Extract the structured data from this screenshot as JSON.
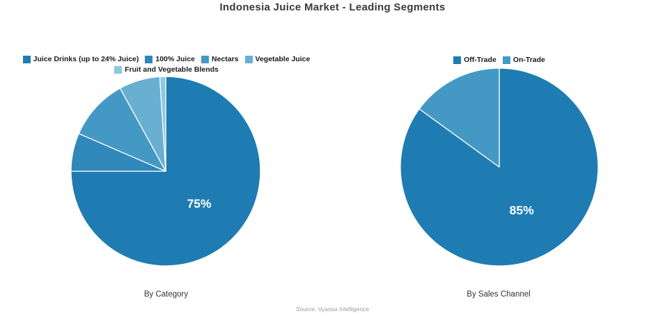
{
  "title": "Indonesia Juice Market - Leading Segments",
  "source": "Source: Vyansa Intelligence",
  "colors": {
    "primary_dark_blue": "#1e7cb2",
    "blue_2": "#2f87ba",
    "blue_3": "#4499c4",
    "blue_4": "#69afd2",
    "blue_5": "#8cc8e2",
    "background": "#ffffff"
  },
  "chart_data": [
    {
      "type": "pie",
      "title": "By Category",
      "start_angle_deg": 0,
      "direction": "clockwise",
      "legend_position": "top",
      "segments": [
        {
          "label": "Juice Drinks (up to 24% Juice)",
          "value": 75,
          "color": "#1e7cb2",
          "pct_label": "75%"
        },
        {
          "label": "100% Juice",
          "value": 6.5,
          "color": "#2f87ba",
          "pct_label": null
        },
        {
          "label": "Nectars",
          "value": 10.5,
          "color": "#4499c4",
          "pct_label": null
        },
        {
          "label": "Vegetable Juice",
          "value": 7,
          "color": "#69afd2",
          "pct_label": null
        },
        {
          "label": "Fruit and Vegetable Blends",
          "value": 1,
          "color": "#8cc8e2",
          "pct_label": null
        }
      ]
    },
    {
      "type": "pie",
      "title": "By Sales Channel",
      "start_angle_deg": 0,
      "direction": "clockwise",
      "legend_position": "top",
      "segments": [
        {
          "label": "Off-Trade",
          "value": 85,
          "color": "#1e7cb2",
          "pct_label": "85%"
        },
        {
          "label": "On-Trade",
          "value": 15,
          "color": "#4499c4",
          "pct_label": null
        }
      ]
    }
  ]
}
